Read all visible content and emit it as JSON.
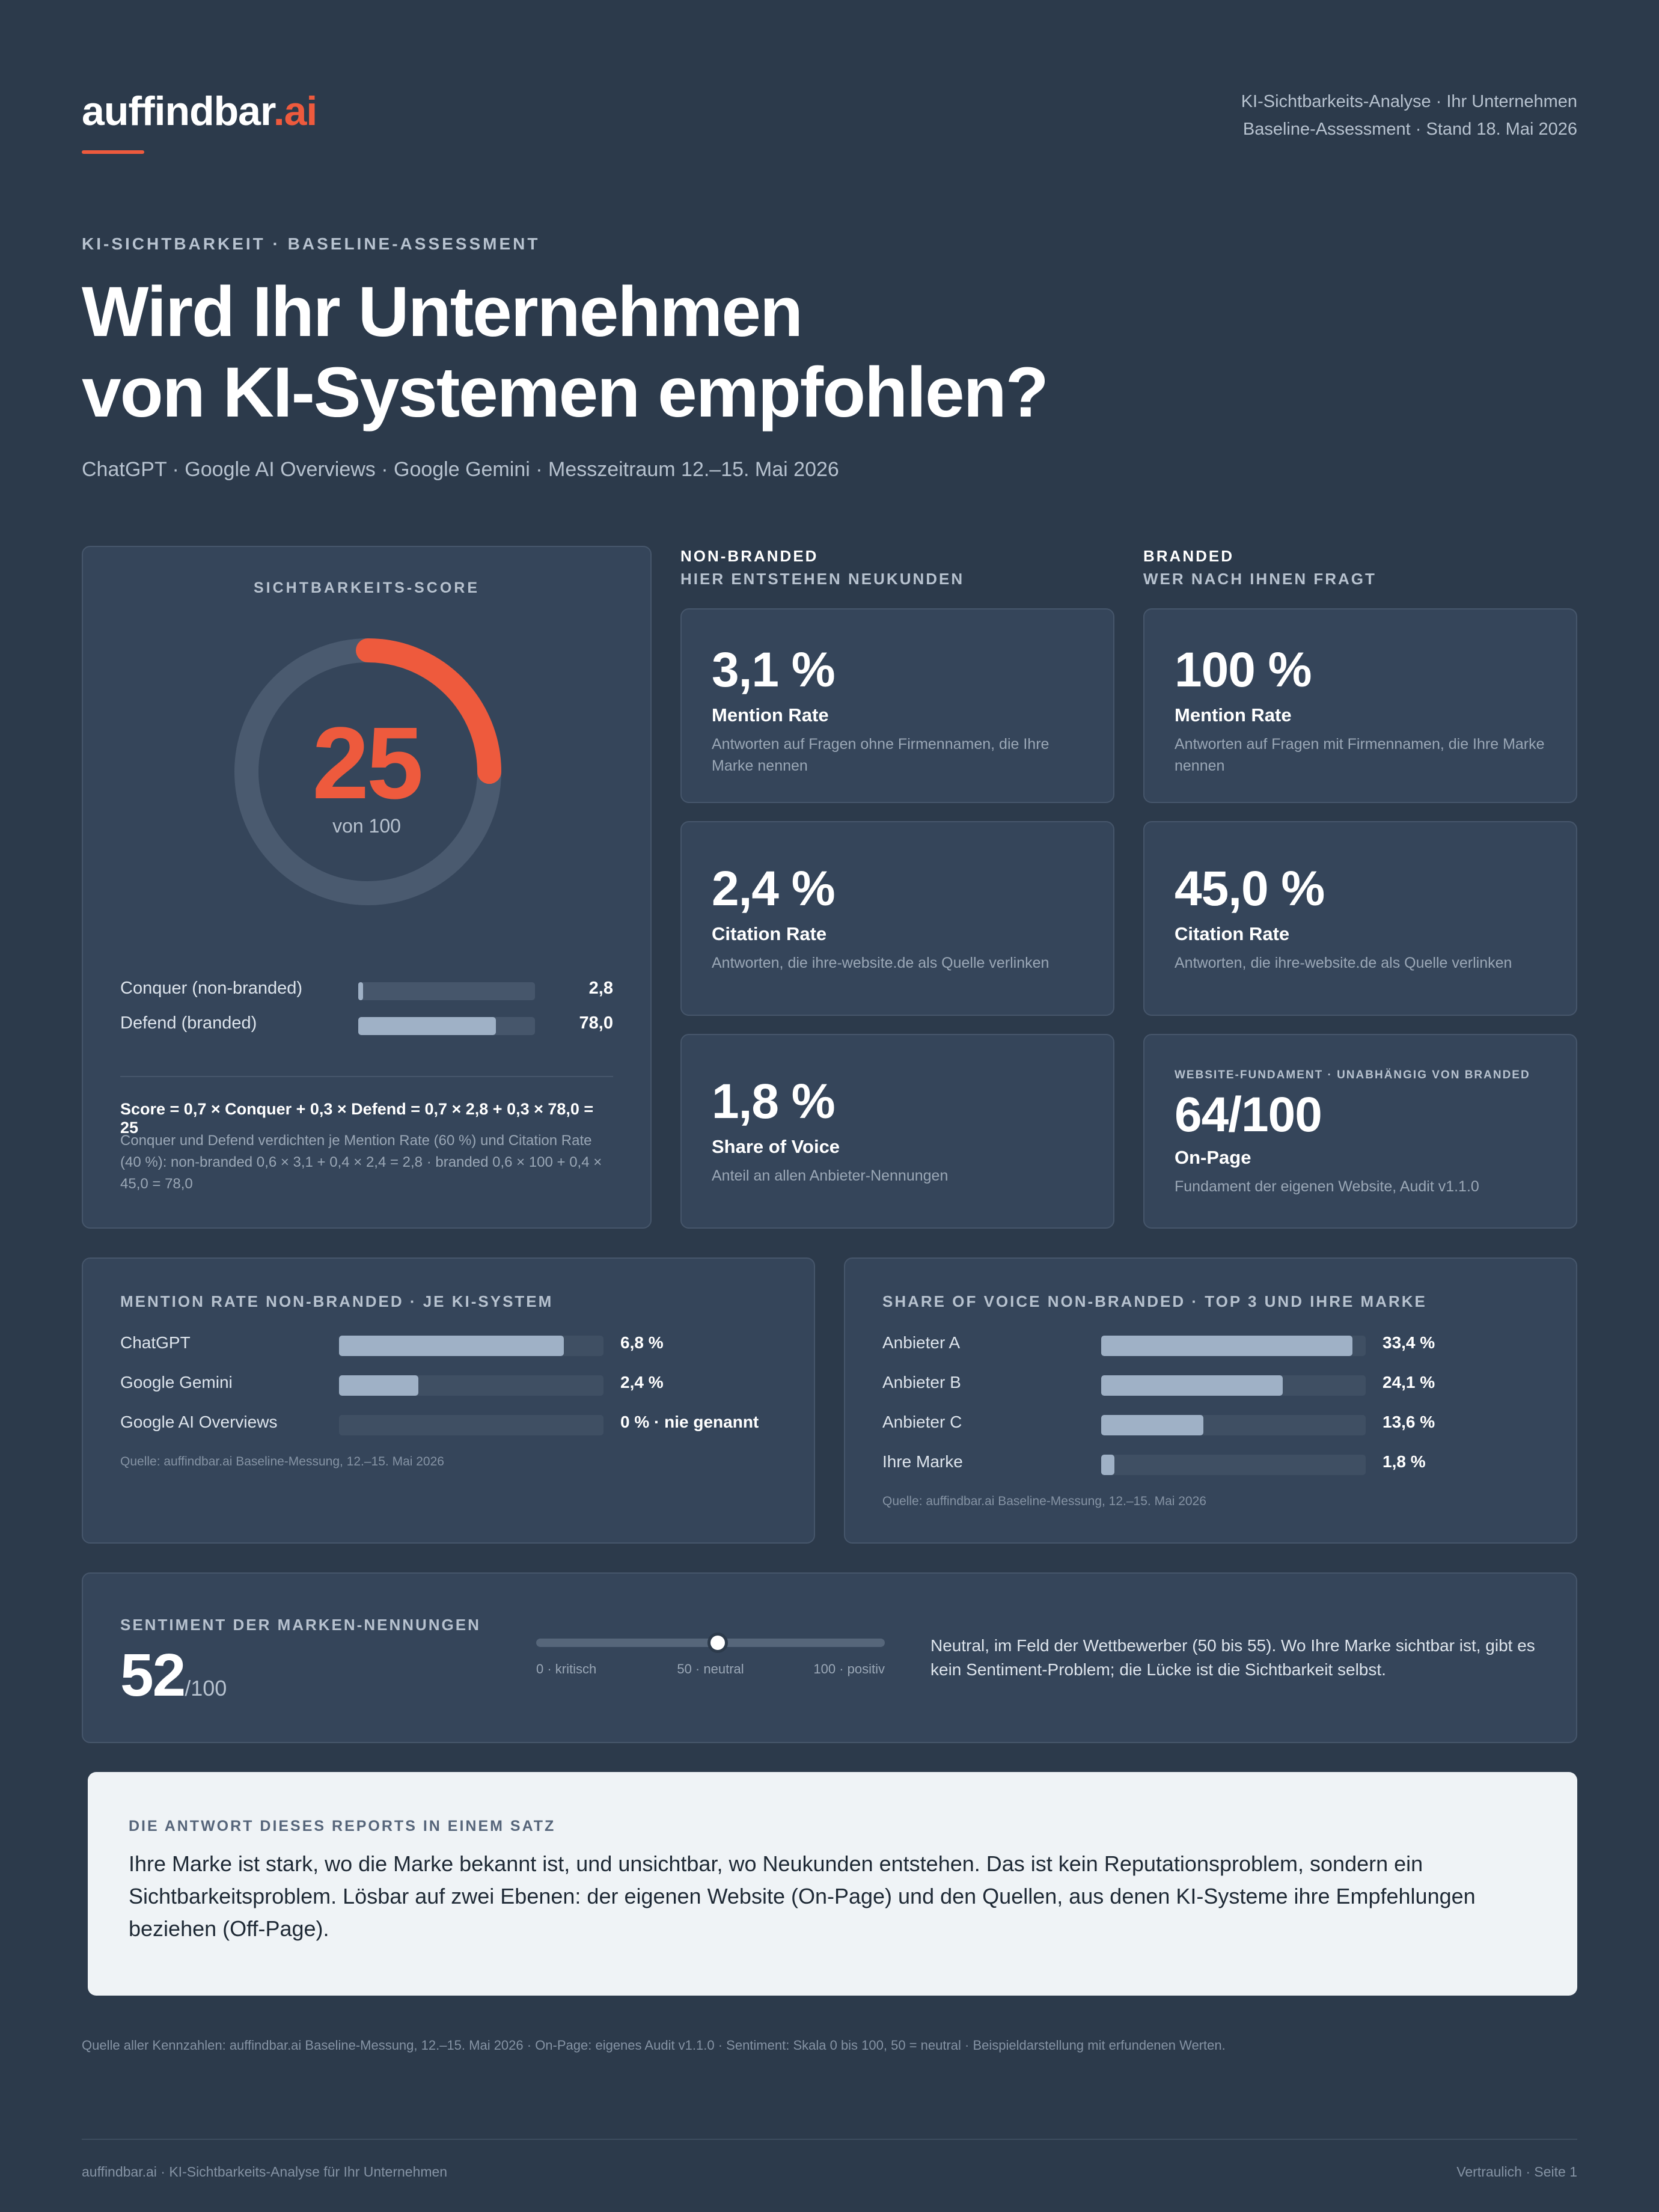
{
  "header": {
    "logo_main": "auffindbar",
    "logo_accent": ".ai",
    "meta_line1": "KI-Sichtbarkeits-Analyse · Ihr Unternehmen",
    "meta_line2": "Baseline-Assessment · Stand 18. Mai 2026"
  },
  "hero": {
    "eyebrow": "KI-SICHTBARKEIT · BASELINE-ASSESSMENT",
    "headline_line1": "Wird Ihr Unternehmen",
    "headline_line2": "von KI-Systemen empfohlen?",
    "subline": "ChatGPT · Google AI Overviews · Google Gemini · Messzeitraum 12.–15. Mai 2026"
  },
  "score": {
    "label": "SICHTBARKEITS-SCORE",
    "value": "25",
    "of": "von 100",
    "fraction": 0.25,
    "bars": [
      {
        "label": "Conquer (non-branded)",
        "value": "2,8",
        "fraction": 0.028
      },
      {
        "label": "Defend (branded)",
        "value": "78,0",
        "fraction": 0.78
      }
    ],
    "formula": "Score = 0,7 × Conquer + 0,3 × Defend = 0,7 × 2,8 + 0,3 × 78,0 = 25",
    "formula_note": "Conquer und Defend verdichten je Mention Rate (60 %) und Citation Rate (40 %): non-branded 0,6 × 3,1 + 0,4 × 2,4 = 2,8 · branded 0,6 × 100 + 0,4 × 45,0 = 78,0",
    "colors": {
      "accent": "#ee5a3d",
      "track": "#4a5a6f"
    }
  },
  "nonbranded": {
    "head1": "NON-BRANDED",
    "head2": "HIER ENTSTEHEN NEUKUNDEN",
    "kpis": [
      {
        "value": "3,1 %",
        "title": "Mention Rate",
        "desc": "Antworten auf Fragen ohne Firmennamen, die Ihre Marke nennen"
      },
      {
        "value": "2,4 %",
        "title": "Citation Rate",
        "desc": "Antworten, die ihre-website.de als Quelle verlinken"
      },
      {
        "value": "1,8 %",
        "title": "Share of Voice",
        "desc": "Anteil an allen Anbieter-Nennungen"
      }
    ]
  },
  "branded": {
    "head1": "BRANDED",
    "head2": "WER NACH IHNEN FRAGT",
    "kpis": [
      {
        "value": "100 %",
        "title": "Mention Rate",
        "desc": "Antworten auf Fragen mit Firmennamen, die Ihre Marke nennen"
      },
      {
        "value": "45,0 %",
        "title": "Citation Rate",
        "desc": "Antworten, die ihre-website.de als Quelle verlinken"
      },
      {
        "eyebrow": "WEBSITE-FUNDAMENT · UNABHÄNGIG VON BRANDED",
        "value": "64/100",
        "title": "On-Page",
        "desc": "Fundament der eigenen Website, Audit v1.1.0"
      }
    ]
  },
  "mention_by_system": {
    "title": "MENTION RATE NON-BRANDED · JE KI-SYSTEM",
    "rows": [
      {
        "label": "ChatGPT",
        "value": "6,8 %",
        "fraction": 0.85
      },
      {
        "label": "Google Gemini",
        "value": "2,4 %",
        "fraction": 0.3
      },
      {
        "label": "Google AI Overviews",
        "value": "0 % · nie genannt",
        "fraction": 0
      }
    ],
    "source": "Quelle: auffindbar.ai Baseline-Messung, 12.–15. Mai 2026"
  },
  "share_of_voice": {
    "title": "SHARE OF VOICE NON-BRANDED · TOP 3 UND IHRE MARKE",
    "rows": [
      {
        "label": "Anbieter A",
        "value": "33,4 %",
        "fraction": 0.95
      },
      {
        "label": "Anbieter B",
        "value": "24,1 %",
        "fraction": 0.686
      },
      {
        "label": "Anbieter C",
        "value": "13,6 %",
        "fraction": 0.387
      },
      {
        "label": "Ihre Marke",
        "value": "1,8 %",
        "fraction": 0.051
      }
    ],
    "source": "Quelle: auffindbar.ai Baseline-Messung, 12.–15. Mai 2026"
  },
  "sentiment": {
    "title": "SENTIMENT DER MARKEN-NENNUNGEN",
    "value": "52",
    "of": "/100",
    "fraction": 0.52,
    "tick_low": "0 · kritisch",
    "tick_mid": "50 · neutral",
    "tick_high": "100 · positiv",
    "text": "Neutral, im Feld der Wettbewerber (50 bis 55). Wo Ihre Marke sichtbar ist, gibt es kein Sentiment-Problem; die Lücke ist die Sichtbarkeit selbst."
  },
  "answer": {
    "title": "DIE ANTWORT DIESES REPORTS IN EINEM SATZ",
    "text": "Ihre Marke ist stark, wo die Marke bekannt ist, und unsichtbar, wo Neukunden entstehen. Das ist kein Reputationsproblem, sondern ein Sichtbarkeitsproblem. Lösbar auf zwei Ebenen: der eigenen Website (On-Page) und den Quellen, aus denen KI-Systeme ihre Empfehlungen beziehen (Off-Page)."
  },
  "footnote": "Quelle aller Kennzahlen: auffindbar.ai Baseline-Messung, 12.–15. Mai 2026 · On-Page: eigenes Audit v1.1.0 · Sentiment: Skala 0 bis 100, 50 = neutral · Beispieldarstellung mit erfundenen Werten.",
  "footer": {
    "left": "auffindbar.ai · KI-Sichtbarkeits-Analyse für Ihr Unternehmen",
    "right": "Vertraulich · Seite 1"
  }
}
